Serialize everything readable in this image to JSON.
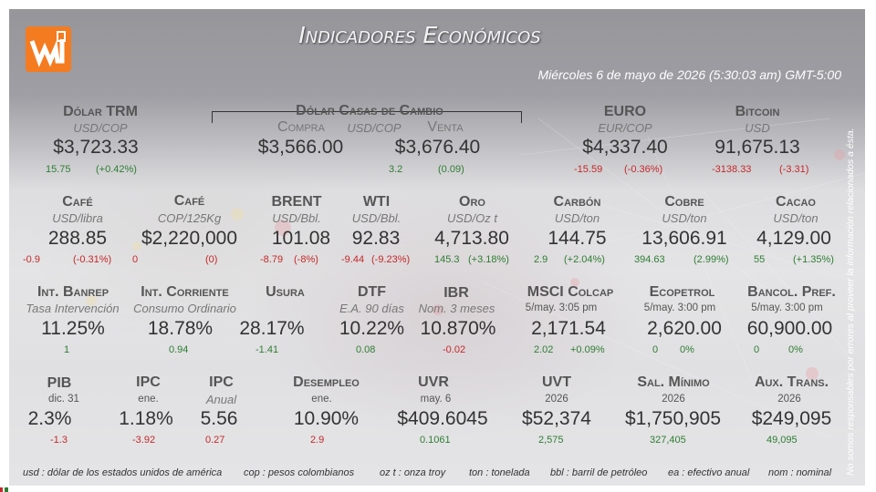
{
  "header": {
    "logo_text": "W",
    "title": "Indicadores Económicos",
    "date": "Miércoles 6 de mayo de 2026 (5:30:03 am) GMT-5:00",
    "side_note": "No somos responsables por errores al proveer la información relacionados a ésta."
  },
  "colors": {
    "brand_orange": "#f47b20",
    "positive": "#2e7d32",
    "negative": "#c62828"
  },
  "row1": {
    "trm": {
      "label": "Dólar TRM",
      "unit": "USD/COP",
      "value": "$3,723.33",
      "chg1": "15.75",
      "chg2": "(+0.42%)"
    },
    "casas": {
      "label": "Dólar Casas de Cambio",
      "unit": "USD/COP",
      "compra_label": "Compra",
      "venta_label": "Venta",
      "compra_value": "$3,566.00",
      "venta_value": "$3,676.40",
      "chg1": "3.2",
      "chg2": "(0.09)"
    },
    "euro": {
      "label": "EURO",
      "unit": "EUR/COP",
      "value": "$4,337.40",
      "chg1": "-15.59",
      "chg2": "(-0.36%)"
    },
    "bitcoin": {
      "label": "Bitcoin",
      "unit": "USD",
      "value": "91,675.13",
      "chg1": "-3138.33",
      "chg2": "(-3.31)"
    }
  },
  "row2": [
    {
      "label": "Café",
      "unit": "USD/libra",
      "value": "288.85",
      "chg1": "-0.9",
      "chg2": "(-0.31%)",
      "sign": "neg"
    },
    {
      "label": "Café",
      "unit": "COP/125Kg",
      "value": "$2,220,000",
      "chg1": "0",
      "chg2": "(0)",
      "sign": "neg"
    },
    {
      "label": "BRENT",
      "unit": "USD/Bbl.",
      "value": "101.08",
      "chg1": "-8.79",
      "chg2": "(-8%)",
      "sign": "neg"
    },
    {
      "label": "WTI",
      "unit": "USD/Bbl.",
      "value": "92.83",
      "chg1": "-9.44",
      "chg2": "(-9.23%)",
      "sign": "neg"
    },
    {
      "label": "Oro",
      "unit": "USD/Oz t",
      "value": "4,713.80",
      "chg1": "145.3",
      "chg2": "(+3.18%)",
      "sign": "pos"
    },
    {
      "label": "Carbón",
      "unit": "USD/ton",
      "value": "144.75",
      "chg1": "2.9",
      "chg2": "(+2.04%)",
      "sign": "pos"
    },
    {
      "label": "Cobre",
      "unit": "USD/ton",
      "value": "13,606.91",
      "chg1": "394.63",
      "chg2": "(2.99%)",
      "sign": "pos"
    },
    {
      "label": "Cacao",
      "unit": "USD/ton",
      "value": "4,129.00",
      "chg1": "55",
      "chg2": "(+1.35%)",
      "sign": "pos"
    }
  ],
  "row3": [
    {
      "label": "Int. Banrep",
      "unit": "Tasa Intervención",
      "value": "11.25%",
      "chg1": "1",
      "sign": "pos"
    },
    {
      "label": "Int. Corriente",
      "unit": "Consumo Ordinario",
      "value": "18.78%",
      "chg1": "0.94",
      "sign": "pos"
    },
    {
      "label": "Usura",
      "unit": "",
      "value": "28.17%",
      "chg1": "-1.41",
      "sign": "pos"
    },
    {
      "label": "DTF",
      "unit": "E.A. 90 días",
      "value": "10.22%",
      "chg1": "0.08",
      "sign": "pos"
    },
    {
      "label": "IBR",
      "unit": "Nom. 3 meses",
      "value": "10.870%",
      "chg1": "-0.02",
      "sign": "neg"
    },
    {
      "label": "MSCI Colcap",
      "unit": "5/may. 3:05 pm",
      "value": "2,171.54",
      "chg1": "2.02",
      "chg2": "+0.09%",
      "sign": "pos"
    },
    {
      "label": "Ecopetrol",
      "unit": "5/may. 3:00 pm",
      "value": "2,620.00",
      "chg1": "0",
      "chg2": "0%",
      "sign": "pos"
    },
    {
      "label": "Bancol. Pref.",
      "unit": "5/may. 3:00 pm",
      "value": "60,900.00",
      "chg1": "0",
      "chg2": "0%",
      "sign": "pos"
    }
  ],
  "row4": [
    {
      "label": "PIB",
      "unit": "dic. 31",
      "value": "2.3%",
      "chg1": "-1.3",
      "sign": "neg"
    },
    {
      "label": "IPC",
      "unit": "ene.",
      "value": "1.18%",
      "chg1": "-3.92",
      "sign": "neg"
    },
    {
      "label": "IPC",
      "unit": "Anual",
      "value": "5.56",
      "chg1": "0.27",
      "sign": "neg"
    },
    {
      "label": "Desempleo",
      "unit": "ene.",
      "value": "10.90%",
      "chg1": "2.9",
      "sign": "neg"
    },
    {
      "label": "UVR",
      "unit": "may. 6",
      "value": "$409.6045",
      "chg1": "0.1061",
      "sign": "pos"
    },
    {
      "label": "UVT",
      "unit": "2026",
      "value": "$52,374",
      "chg1": "2,575",
      "sign": "pos"
    },
    {
      "label": "Sal. Mínimo",
      "unit": "2026",
      "value": "$1,750,905",
      "chg1": "327,405",
      "sign": "pos"
    },
    {
      "label": "Aux. Trans.",
      "unit": "2026",
      "value": "$249,095",
      "chg1": "49,095",
      "sign": "pos"
    }
  ],
  "footer": [
    "usd : dólar de los estados unidos de américa",
    "cop : pesos colombianos",
    "oz t : onza troy",
    "ton : tonelada",
    "bbl : barril de petróleo",
    "ea : efectivo anual",
    "nom : nominal"
  ]
}
